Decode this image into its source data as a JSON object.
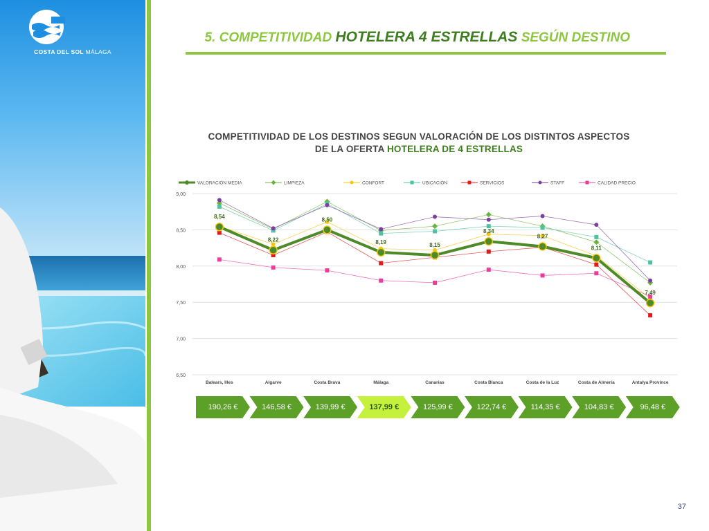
{
  "brand": {
    "name_bold": "COSTA DEL SOL",
    "name_light": "MÁLAGA"
  },
  "header": {
    "prefix": "5. COMPETITIVIDAD",
    "highlight": "HOTELERA 4 ESTRELLAS",
    "suffix": "SEGÚN DESTINO"
  },
  "chart_heading": {
    "line1": "COMPETITIVIDAD DE LOS DESTINOS SEGUN VALORACIÓN DE LOS DISTINTOS ASPECTOS",
    "line2_plain": "DE LA OFERTA",
    "line2_accent": "HOTELERA DE 4 ESTRELLAS"
  },
  "colors": {
    "brand_green": "#8dc63f",
    "dark_green": "#3e7d1f",
    "price_arrow": "#5ca028",
    "price_highlight": "#c5f03c"
  },
  "chart_data": {
    "type": "line",
    "categories": [
      "Balears, Illes",
      "Algarve",
      "Costa Brava",
      "Málaga",
      "Canarias",
      "Costa Blanca",
      "Costa de la Luz",
      "Costa de Almería",
      "Antalya Province"
    ],
    "ylim": [
      6.5,
      9.0
    ],
    "yticks": [
      "6,50",
      "7,00",
      "7,50",
      "8,00",
      "8,50",
      "9,00"
    ],
    "grid": true,
    "legend_position": "top",
    "series": [
      {
        "name": "VALORACIÓN MEDIA",
        "color": "#4e8a28",
        "marker": "circle",
        "values": [
          8.54,
          8.22,
          8.5,
          8.19,
          8.15,
          8.34,
          8.27,
          8.11,
          7.49
        ],
        "labels": [
          "8,54",
          "8,22",
          "8,50",
          "8,19",
          "8,15",
          "8,34",
          "8,27",
          "8,11",
          "7,49"
        ]
      },
      {
        "name": "LIMPIEZA",
        "color": "#6bb33f",
        "marker": "diamond",
        "values": [
          8.87,
          8.51,
          8.89,
          8.49,
          8.55,
          8.71,
          8.55,
          8.33,
          7.77
        ]
      },
      {
        "name": "CONFORT",
        "color": "#f5c518",
        "marker": "circle",
        "values": [
          8.55,
          8.3,
          8.61,
          8.24,
          8.22,
          8.44,
          8.42,
          8.14,
          7.55
        ]
      },
      {
        "name": "UBICACIÓN",
        "color": "#4fc3a1",
        "marker": "square",
        "values": [
          8.82,
          8.49,
          8.86,
          8.45,
          8.48,
          8.55,
          8.53,
          8.4,
          8.05
        ]
      },
      {
        "name": "SERVICIOS",
        "color": "#e01b1b",
        "marker": "square",
        "values": [
          8.46,
          8.15,
          8.47,
          8.04,
          8.12,
          8.2,
          8.26,
          8.02,
          7.32
        ]
      },
      {
        "name": "STAFF",
        "color": "#7a3fa0",
        "marker": "circle",
        "values": [
          8.91,
          8.52,
          8.84,
          8.51,
          8.68,
          8.64,
          8.69,
          8.57,
          7.8
        ]
      },
      {
        "name": "CALIDAD PRECIO",
        "color": "#e83f9d",
        "marker": "square",
        "values": [
          8.09,
          7.98,
          7.94,
          7.8,
          7.77,
          7.95,
          7.87,
          7.9,
          7.58
        ]
      }
    ]
  },
  "prices": [
    "190,26 €",
    "146,58 €",
    "139,99 €",
    "137,99 €",
    "125,99 €",
    "122,74 €",
    "114,35 €",
    "104,83 €",
    "96,48 €"
  ],
  "highlight_price_index": 3,
  "page_number": "37"
}
